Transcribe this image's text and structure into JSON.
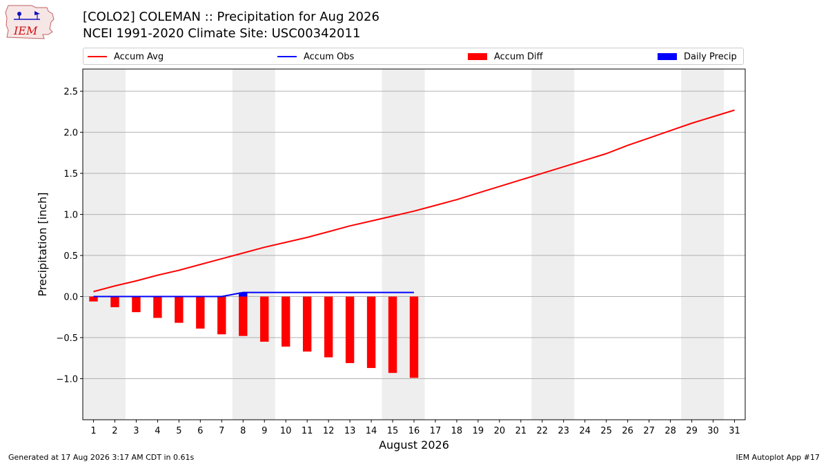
{
  "logo": {
    "text": "IEM"
  },
  "header": {
    "title_line1": "[COLO2] COLEMAN :: Precipitation for Aug 2026",
    "title_line2": "NCEI 1991-2020 Climate Site: USC00342011"
  },
  "legend": [
    {
      "label": "Accum Avg",
      "kind": "line",
      "color": "#ff0000"
    },
    {
      "label": "Accum Obs",
      "kind": "line",
      "color": "#0000ff"
    },
    {
      "label": "Accum Diff",
      "kind": "patch",
      "color": "#ff0000"
    },
    {
      "label": "Daily Precip",
      "kind": "patch",
      "color": "#0000ff"
    }
  ],
  "chart_data": {
    "type": "bar",
    "title": "[COLO2] COLEMAN :: Precipitation for Aug 2026",
    "xlabel": "August 2026",
    "ylabel": "Precipitation [inch]",
    "ylim": [
      -1.5,
      2.77
    ],
    "yticks": [
      -1.0,
      -0.5,
      0.0,
      0.5,
      1.0,
      1.5,
      2.0,
      2.5
    ],
    "ytick_labels": [
      "−1.0",
      "−0.5",
      "0.0",
      "0.5",
      "1.0",
      "1.5",
      "2.0",
      "2.5"
    ],
    "x": [
      1,
      2,
      3,
      4,
      5,
      6,
      7,
      8,
      9,
      10,
      11,
      12,
      13,
      14,
      15,
      16,
      17,
      18,
      19,
      20,
      21,
      22,
      23,
      24,
      25,
      26,
      27,
      28,
      29,
      30,
      31
    ],
    "grid": true,
    "legend_position": "top",
    "weekend_shading_days": [
      [
        1,
        2
      ],
      [
        8,
        9
      ],
      [
        15,
        16
      ],
      [
        22,
        23
      ],
      [
        29,
        30
      ]
    ],
    "series": [
      {
        "name": "Accum Avg",
        "type": "line",
        "color": "#ff0000",
        "x": [
          1,
          2,
          3,
          4,
          5,
          6,
          7,
          8,
          9,
          10,
          11,
          12,
          13,
          14,
          15,
          16,
          17,
          18,
          19,
          20,
          21,
          22,
          23,
          24,
          25,
          26,
          27,
          28,
          29,
          30,
          31
        ],
        "values": [
          0.06,
          0.13,
          0.19,
          0.26,
          0.32,
          0.39,
          0.46,
          0.53,
          0.6,
          0.66,
          0.72,
          0.79,
          0.86,
          0.92,
          0.98,
          1.04,
          1.11,
          1.18,
          1.26,
          1.34,
          1.42,
          1.5,
          1.58,
          1.66,
          1.74,
          1.84,
          1.93,
          2.02,
          2.11,
          2.19,
          2.27
        ]
      },
      {
        "name": "Accum Obs",
        "type": "line",
        "color": "#0000ff",
        "x": [
          1,
          2,
          3,
          4,
          5,
          6,
          7,
          8,
          9,
          10,
          11,
          12,
          13,
          14,
          15,
          16
        ],
        "values": [
          0.0,
          0.0,
          0.0,
          0.0,
          0.0,
          0.0,
          0.0,
          0.05,
          0.05,
          0.05,
          0.05,
          0.05,
          0.05,
          0.05,
          0.05,
          0.05
        ]
      },
      {
        "name": "Accum Diff",
        "type": "bar",
        "color": "#ff0000",
        "x": [
          1,
          2,
          3,
          4,
          5,
          6,
          7,
          8,
          9,
          10,
          11,
          12,
          13,
          14,
          15,
          16
        ],
        "values": [
          -0.06,
          -0.13,
          -0.19,
          -0.26,
          -0.32,
          -0.39,
          -0.46,
          -0.48,
          -0.55,
          -0.61,
          -0.67,
          -0.74,
          -0.81,
          -0.87,
          -0.93,
          -0.99
        ]
      },
      {
        "name": "Daily Precip",
        "type": "bar",
        "color": "#0000ff",
        "x": [
          8
        ],
        "values": [
          0.05
        ]
      }
    ]
  },
  "footer": {
    "generated": "Generated at 17 Aug 2026 3:17 AM CDT in 0.61s",
    "app": "IEM Autoplot App #17"
  }
}
